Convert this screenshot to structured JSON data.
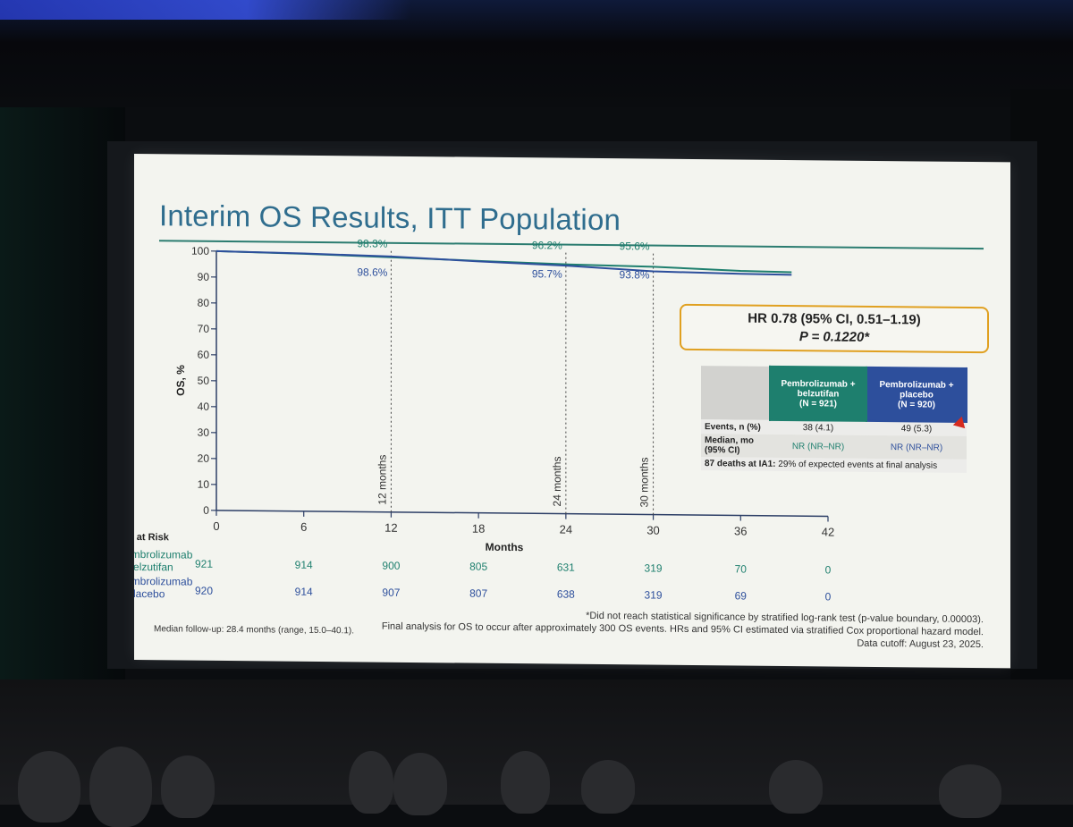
{
  "slide": {
    "title": "Interim OS Results, ITT Population",
    "hr_line": "HR 0.78 (95% CI, 0.51–1.19)",
    "p_line": "P = 0.1220*",
    "table": {
      "col1": {
        "name": "Pembrolizumab + belzutifan",
        "line1": "Pembrolizumab +",
        "line2": "belzutifan",
        "n": "(N = 921)"
      },
      "col2": {
        "name": "Pembrolizumab + placebo",
        "line1": "Pembrolizumab +",
        "line2": "placebo",
        "n": "(N = 920)"
      },
      "rows": [
        {
          "label": "Events, n (%)",
          "v1": "38 (4.1)",
          "v2": "49 (5.3)"
        },
        {
          "label": "Median, mo (95% CI)",
          "label1": "Median, mo",
          "label2": "(95% CI)",
          "v1": "NR (NR–NR)",
          "v2": "NR (NR–NR)"
        }
      ],
      "deaths_bold": "87 deaths at IA1:",
      "deaths_rest": " 29% of expected events at final analysis"
    },
    "footnote1": "*Did not reach statistical significance by stratified log-rank test (p-value boundary, 0.00003).",
    "footnote2": "Final analysis for OS to occur after approximately 300 OS events. HRs and 95% CI estimated via stratified Cox proportional hazard model.",
    "footnote3": "Data cutoff: August 23, 2025.",
    "followup": "Median follow-up: 28.4 months (range, 15.0–40.1)."
  },
  "colors": {
    "green": "#1e7f6e",
    "blue": "#2d4f9c",
    "accent": "#e0a020",
    "title": "#2f6d8e"
  },
  "chart_data": {
    "type": "line",
    "xlabel": "Months",
    "ylabel": "OS, %",
    "xlim": [
      0,
      42
    ],
    "ylim": [
      0,
      100
    ],
    "xticks": [
      0,
      6,
      12,
      18,
      24,
      30,
      36,
      42
    ],
    "yticks": [
      0,
      10,
      20,
      30,
      40,
      50,
      60,
      70,
      80,
      90,
      100
    ],
    "landmarks": [
      {
        "x": 12,
        "label": "12 months",
        "green": "98.3%",
        "blue": "98.6%"
      },
      {
        "x": 24,
        "label": "24 months",
        "green": "96.2%",
        "blue": "95.7%"
      },
      {
        "x": 30,
        "label": "30 months",
        "green": "95.6%",
        "blue": "93.8%"
      }
    ],
    "series": [
      {
        "name": "Pembrolizumab + belzutifan",
        "color": "#1e7f6e",
        "x": [
          0,
          6,
          12,
          18,
          24,
          30,
          36,
          39.5
        ],
        "y": [
          100,
          99.3,
          98.3,
          97.2,
          96.2,
          95.6,
          94.3,
          94.0
        ]
      },
      {
        "name": "Pembrolizumab + placebo",
        "color": "#2d4f9c",
        "x": [
          0,
          6,
          12,
          18,
          24,
          30,
          36,
          39.5
        ],
        "y": [
          100,
          99.4,
          98.6,
          97.0,
          95.7,
          93.8,
          93.2,
          93.0
        ]
      }
    ],
    "at_risk": {
      "title": "No. at Risk",
      "rows": [
        {
          "label1": "Pembrolizumab",
          "label2": "+ belzutifan",
          "color": "#1e7f6e",
          "values": [
            "921",
            "914",
            "900",
            "805",
            "631",
            "319",
            "70",
            "0"
          ]
        },
        {
          "label1": "Pembrolizumab",
          "label2": "+ placebo",
          "color": "#2d4f9c",
          "values": [
            "920",
            "914",
            "907",
            "807",
            "638",
            "319",
            "69",
            "0"
          ]
        }
      ]
    }
  }
}
